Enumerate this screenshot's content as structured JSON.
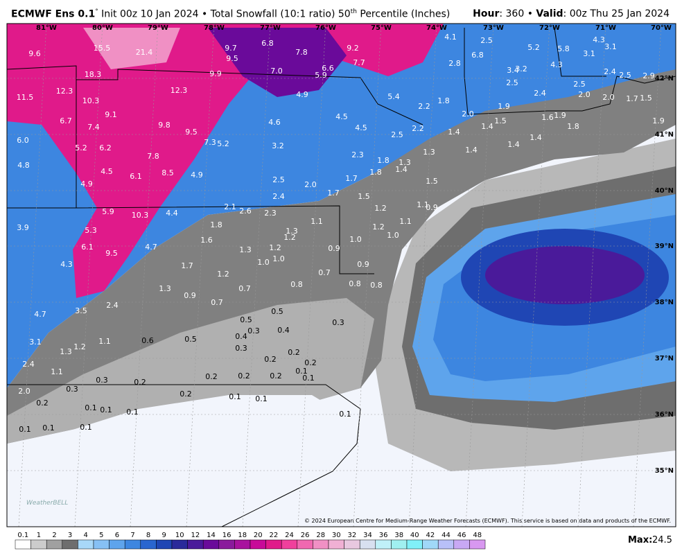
{
  "header": {
    "model": "ECMWF Ens 0.1",
    "degree": "°",
    "title_mid": " Init 00z 10 Jan 2024 • Total Snowfall (10:1 ratio) 50",
    "title_sup": "th",
    "title_end": " Percentile (Inches)",
    "hour_label": "Hour",
    "hour_value": ": 360 • ",
    "valid_label": "Valid",
    "valid_value": ": 00z Thu 25 Jan 2024"
  },
  "lon_labels": [
    "81°W",
    "80°W",
    "79°W",
    "78°W",
    "77°W",
    "76°W",
    "75°W",
    "74°W",
    "73°W",
    "72°W",
    "71°W",
    "70°W"
  ],
  "lat_labels": [
    "42°N",
    "41°N",
    "40°N",
    "39°N",
    "38°N",
    "37°N",
    "36°N",
    "35°N"
  ],
  "map_labels": [
    "9.6",
    "15.5",
    "21.4",
    "18.3",
    "9.7",
    "6.8",
    "9.5",
    "7.8",
    "9.2",
    "7.7",
    "9.9",
    "7.0",
    "6.6",
    "5.9",
    "11.5",
    "12.3",
    "10.3",
    "12.3",
    "4.9",
    "5.4",
    "9.1",
    "6.7",
    "7.4",
    "9.8",
    "9.5",
    "7.3",
    "5.2",
    "4.6",
    "4.5",
    "4.5",
    "2.2",
    "1.8",
    "6.0",
    "5.2",
    "6.2",
    "7.8",
    "3.2",
    "2.5",
    "2.2",
    "4.8",
    "4.5",
    "6.1",
    "8.5",
    "4.9",
    "2.3",
    "1.8",
    "1.3",
    "1.4",
    "1.8",
    "4.9",
    "2.5",
    "2.0",
    "1.7",
    "1.7",
    "2.4",
    "1.5",
    "1.5",
    "5.9",
    "10.3",
    "4.4",
    "2.1",
    "2.6",
    "2.3",
    "1.2",
    "1.1",
    "0.9",
    "1.1",
    "1.8",
    "3.9",
    "5.3",
    "1.3",
    "1.2",
    "1.1",
    "1.6",
    "1.2",
    "1.0",
    "1.0",
    "6.1",
    "9.5",
    "4.7",
    "1.3",
    "1.2",
    "0.9",
    "4.3",
    "1.7",
    "1.0",
    "1.0",
    "1.2",
    "0.7",
    "0.9",
    "1.3",
    "0.7",
    "0.8",
    "0.8",
    "0.8",
    "0.9",
    "0.7",
    "2.4",
    "3.5",
    "4.7",
    "0.5",
    "0.5",
    "0.3",
    "0.3",
    "0.4",
    "0.4",
    "3.1",
    "1.1",
    "1.2",
    "1.3",
    "0.6",
    "0.5",
    "0.3",
    "0.2",
    "2.4",
    "0.2",
    "0.2",
    "1.1",
    "0.3",
    "0.2",
    "0.2",
    "0.2",
    "0.2",
    "0.1",
    "0.1",
    "2.0",
    "0.3",
    "0.2",
    "0.1",
    "0.1",
    "0.2",
    "0.1",
    "0.1",
    "0.1",
    "0.1",
    "0.1",
    "0.1",
    "0.1",
    "4.1",
    "2.5",
    "6.8",
    "5.2",
    "5.8",
    "4.3",
    "3.1",
    "3.1",
    "2.8",
    "3.4",
    "3.2",
    "4.3",
    "2.4",
    "2.5",
    "2.9",
    "2.5",
    "2.4",
    "2.5",
    "2.0",
    "2.0",
    "1.7",
    "1.5",
    "2.0",
    "1.9",
    "1.5",
    "1.4",
    "1.6",
    "1.9",
    "1.4",
    "1.8",
    "1.4",
    "1.4",
    "1.4",
    "1.3",
    "1.9"
  ],
  "logo": "WeatherBELL",
  "copyright": "© 2024 European Centre for Medium-Range Weather Forecasts (ECMWF). This service is based on data and products of the ECMWF.",
  "colorbar": {
    "ticks": [
      "0.1",
      "1",
      "2",
      "3",
      "4",
      "5",
      "6",
      "7",
      "8",
      "9",
      "10",
      "12",
      "14",
      "16",
      "18",
      "20",
      "22",
      "24",
      "26",
      "28",
      "30",
      "32",
      "34",
      "36",
      "38",
      "40",
      "42",
      "44",
      "46",
      "48"
    ],
    "colors": [
      "#ffffff",
      "#cccccc",
      "#a0a0a0",
      "#6e6e6e",
      "#a8d8f8",
      "#86c0f4",
      "#5ea4ec",
      "#3d86e0",
      "#2a66cf",
      "#1f46b4",
      "#2a2a9a",
      "#4a1a9a",
      "#6a0a9a",
      "#8a1a9c",
      "#a8129e",
      "#c80a98",
      "#e01a8a",
      "#f0409c",
      "#f068b0",
      "#f090c4",
      "#f0b0d4",
      "#e8c8e0",
      "#d8e0f0",
      "#c0f0f8",
      "#a0f0f0",
      "#80f0f8",
      "#a0d8f8",
      "#b8c0f8",
      "#c8a8f4",
      "#d898f0"
    ]
  },
  "max_label": "Max:",
  "max_value": "24.5"
}
